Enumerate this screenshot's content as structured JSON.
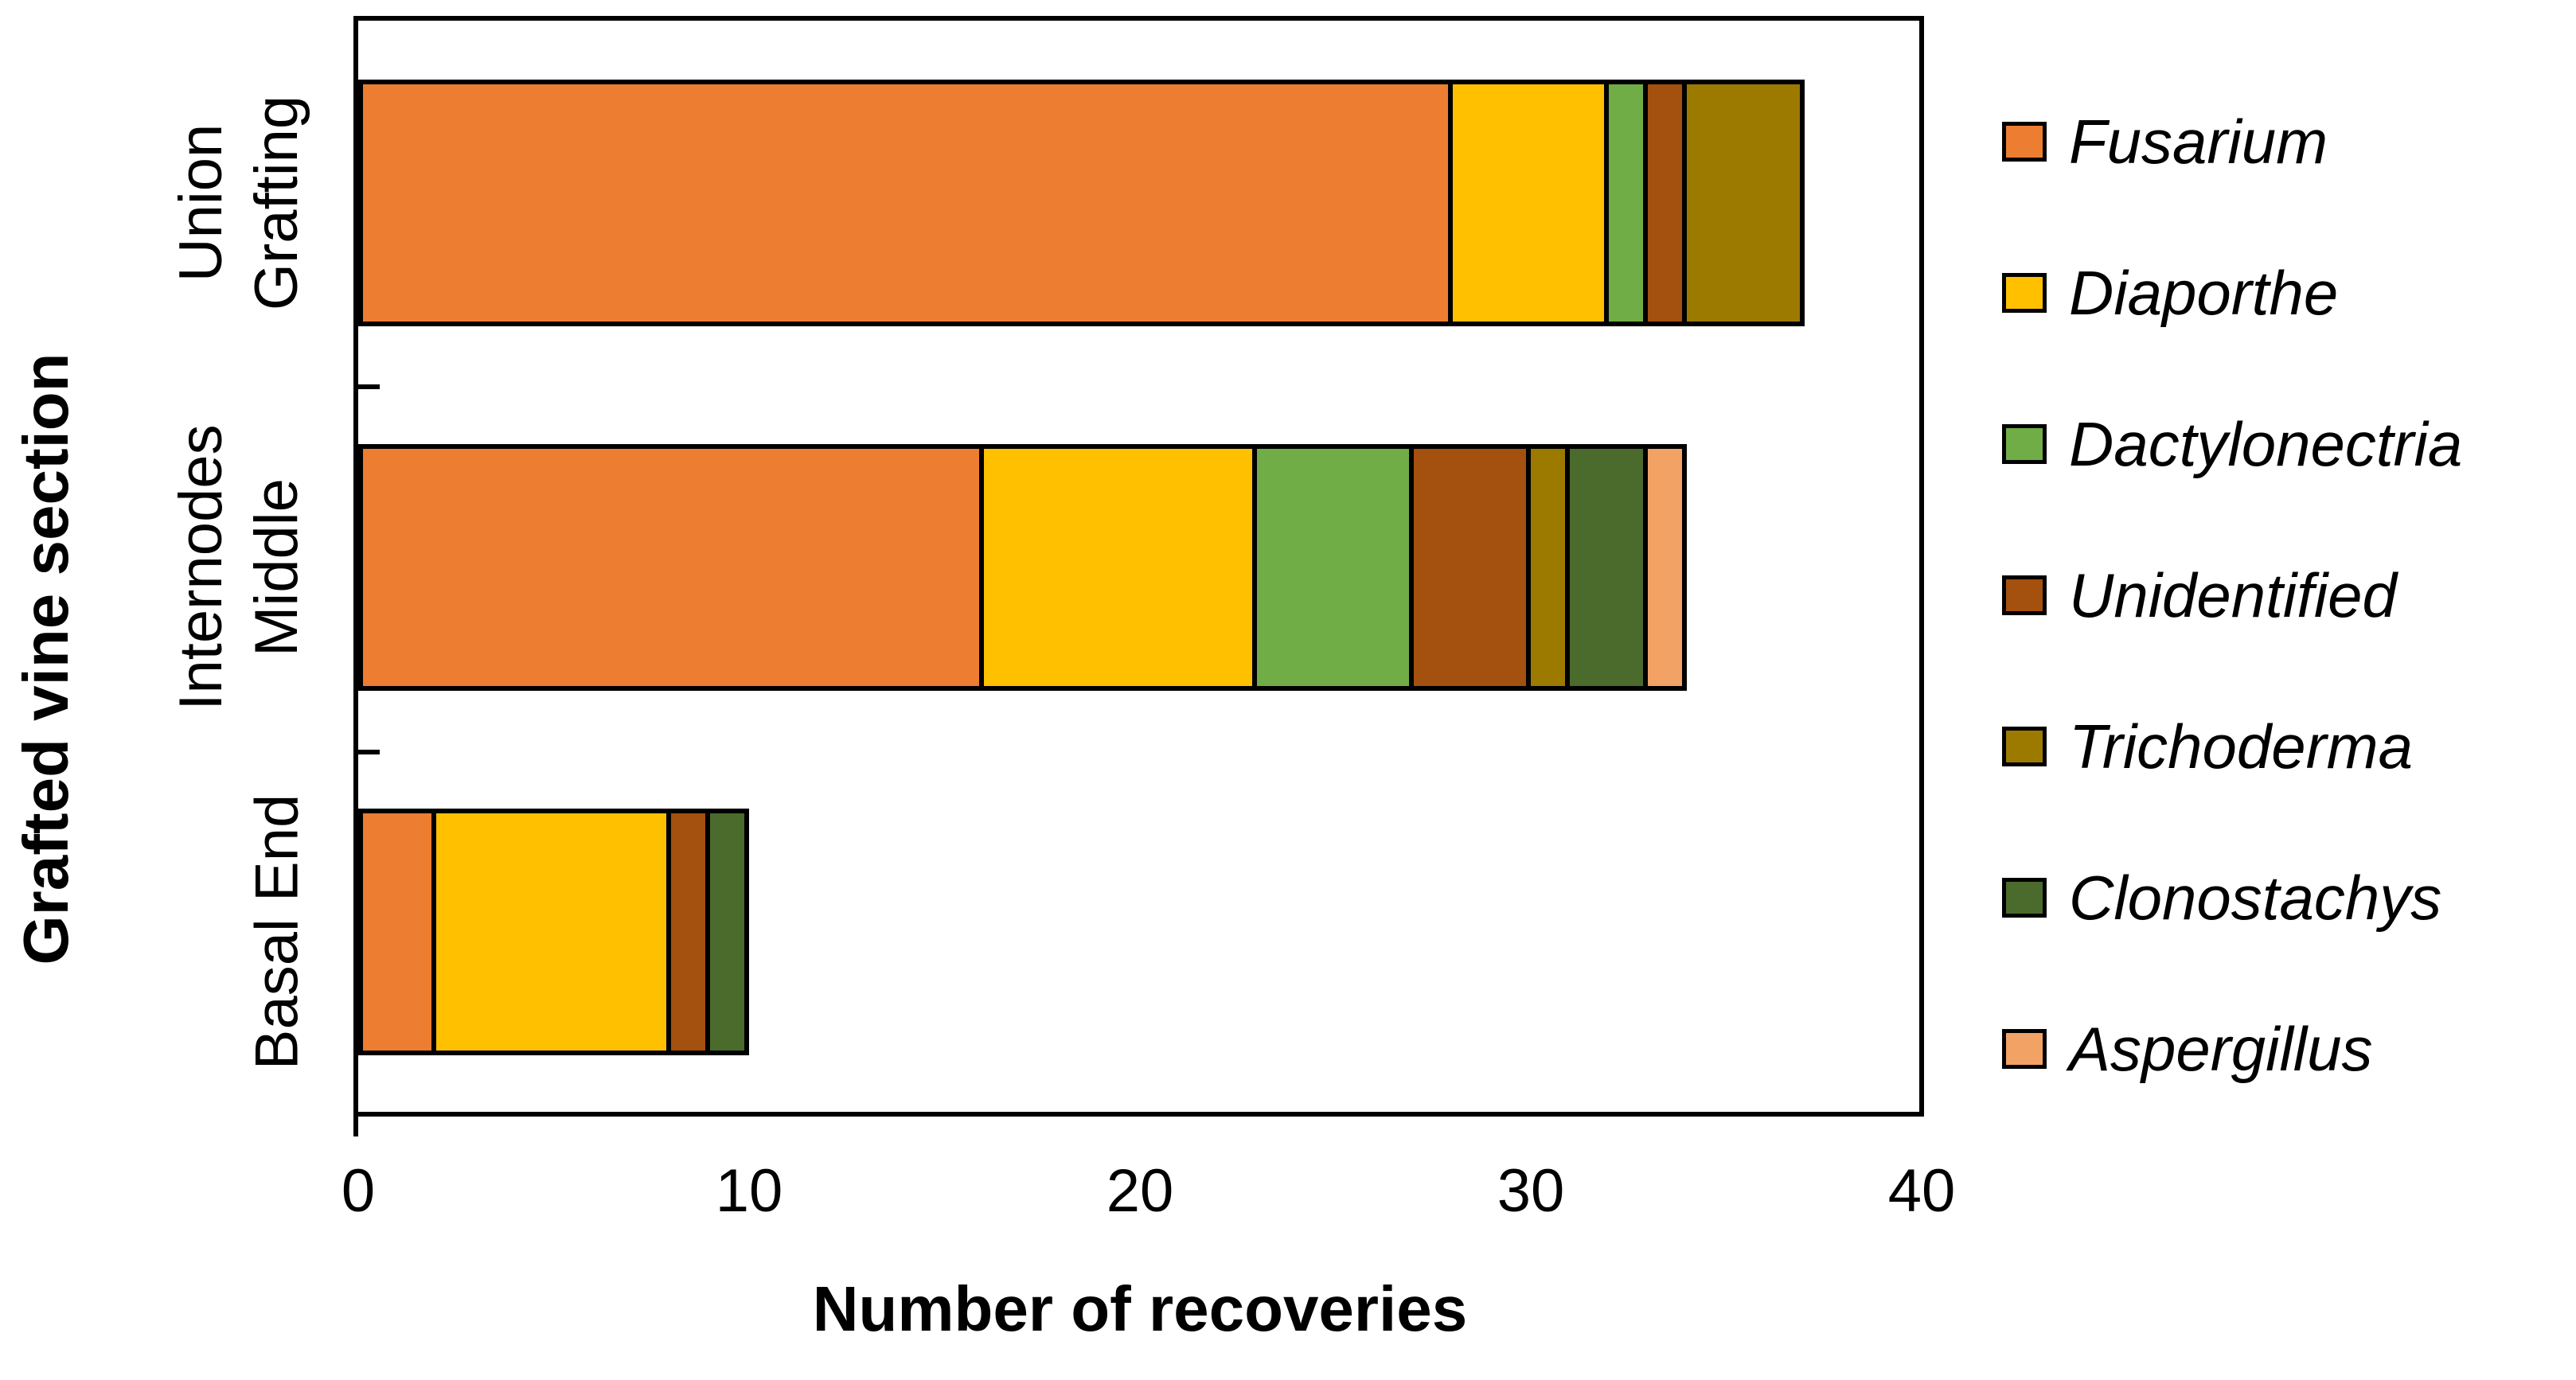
{
  "chart_data": {
    "type": "bar",
    "orientation": "horizontal",
    "stacked": true,
    "title": "",
    "xlabel": "Number of recoveries",
    "ylabel": "Grafted vine section",
    "categories": [
      "Grafting Union",
      "Middle Internodes",
      "Basal End"
    ],
    "category_label_lines": [
      [
        "Grafting",
        "Union"
      ],
      [
        "Middle",
        "Internodes"
      ],
      [
        "Basal End"
      ]
    ],
    "x_ticks": [
      0,
      10,
      20,
      30,
      40
    ],
    "xlim": [
      0,
      40
    ],
    "grid": false,
    "legend_position": "right",
    "bar_border_color": "#000000",
    "series": [
      {
        "name": "Fusarium",
        "color": "#ED7D31",
        "values": [
          28,
          16,
          2
        ]
      },
      {
        "name": "Diaporthe",
        "color": "#FFC000",
        "values": [
          4,
          7,
          6
        ]
      },
      {
        "name": "Dactylonectria",
        "color": "#70AD47",
        "values": [
          1,
          4,
          0
        ]
      },
      {
        "name": "Unidentified",
        "color": "#A4500E",
        "values": [
          1,
          3,
          1
        ]
      },
      {
        "name": "Trichoderma",
        "color": "#9C7A00",
        "values": [
          3,
          1,
          0
        ]
      },
      {
        "name": "Clonostachys",
        "color": "#4A6B2B",
        "values": [
          0,
          2,
          1
        ]
      },
      {
        "name": "Aspergillus",
        "color": "#F2A265",
        "values": [
          0,
          1,
          0
        ]
      }
    ]
  }
}
